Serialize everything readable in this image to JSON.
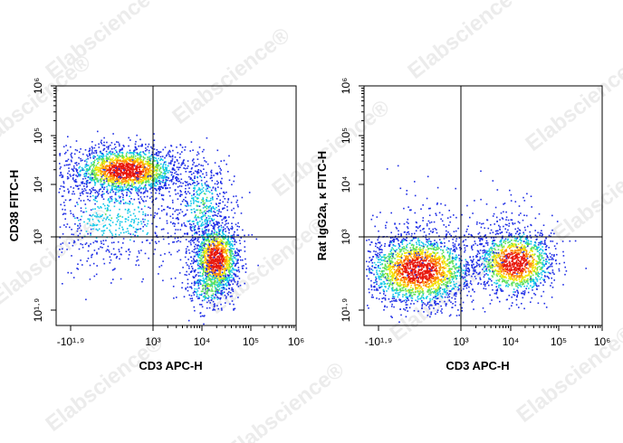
{
  "watermark": "Elabscience®",
  "plots": [
    {
      "y_label": "CD38 FITC-H",
      "x_label": "CD3 APC-H",
      "x_ticks": [
        "-10¹·⁹",
        "10³",
        "10⁴",
        "10⁵",
        "10⁶"
      ],
      "y_ticks": [
        "10⁶",
        "10⁵",
        "10⁴",
        "10³",
        "10¹·⁹"
      ]
    },
    {
      "y_label": "Rat IgG2a, κ FITC-H",
      "x_label": "CD3 APC-H",
      "x_ticks": [
        "-10¹·⁹",
        "10³",
        "10⁴",
        "10⁵",
        "10⁶"
      ],
      "y_ticks": [
        "10⁶",
        "10⁵",
        "10⁴",
        "10³",
        "10¹·⁹"
      ]
    }
  ]
}
